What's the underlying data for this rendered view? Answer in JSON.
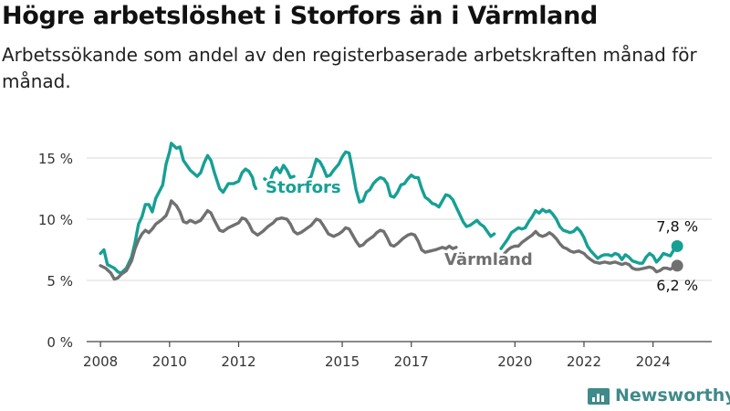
{
  "header": {
    "title": "Högre arbetslöshet i Storfors än i Värmland",
    "subtitle": "Arbetssökande som andel av den registerbaserade arbetskraften månad för månad."
  },
  "brand": {
    "name": "Newsworthy",
    "icon": "newsworthy-logo-icon"
  },
  "colors": {
    "storfors": "#16a094",
    "varmland": "#707070",
    "grid": "#d9d9d9",
    "axis": "#444444"
  },
  "chart_data": {
    "type": "line",
    "title": "Högre arbetslöshet i Storfors än i Värmland",
    "subtitle": "Arbetssökande som andel av den registerbaserade arbetskraften månad för månad.",
    "xlabel": "",
    "ylabel": "",
    "ylim": [
      0,
      15
    ],
    "xlim": [
      2007.6,
      2025.7
    ],
    "yticks": [
      {
        "value": 0,
        "label": "0 %"
      },
      {
        "value": 5,
        "label": "5 %"
      },
      {
        "value": 10,
        "label": "10 %"
      },
      {
        "value": 15,
        "label": "15 %"
      }
    ],
    "xticks": [
      "2008",
      "2010",
      "2012",
      "2015",
      "2017",
      "2020",
      "2022",
      "2024"
    ],
    "grid": true,
    "series": [
      {
        "name": "Storfors",
        "color": "#16a094",
        "points": [
          [
            2008.0,
            7.2
          ],
          [
            2008.1,
            7.5
          ],
          [
            2008.2,
            6.3
          ],
          [
            2008.4,
            6.0
          ],
          [
            2008.5,
            5.7
          ],
          [
            2008.6,
            5.6
          ],
          [
            2008.75,
            6.0
          ],
          [
            2008.9,
            6.9
          ],
          [
            2009.0,
            8.1
          ],
          [
            2009.1,
            9.6
          ],
          [
            2009.2,
            10.2
          ],
          [
            2009.3,
            11.2
          ],
          [
            2009.4,
            11.2
          ],
          [
            2009.5,
            10.6
          ],
          [
            2009.6,
            11.7
          ],
          [
            2009.8,
            12.8
          ],
          [
            2009.9,
            14.5
          ],
          [
            2010.0,
            15.5
          ],
          [
            2010.05,
            16.2
          ],
          [
            2010.2,
            15.8
          ],
          [
            2010.3,
            15.9
          ],
          [
            2010.4,
            14.8
          ],
          [
            2010.6,
            14.0
          ],
          [
            2010.8,
            13.5
          ],
          [
            2010.9,
            13.8
          ],
          [
            2011.0,
            14.6
          ],
          [
            2011.1,
            15.2
          ],
          [
            2011.2,
            14.8
          ],
          [
            2011.3,
            13.8
          ],
          [
            2011.45,
            12.5
          ],
          [
            2011.55,
            12.2
          ],
          [
            2011.7,
            12.9
          ],
          [
            2011.85,
            12.9
          ],
          [
            2012.0,
            13.1
          ],
          [
            2012.1,
            13.8
          ],
          [
            2012.2,
            14.1
          ],
          [
            2012.3,
            13.9
          ],
          [
            2012.4,
            13.4
          ],
          [
            2012.45,
            12.8
          ],
          [
            2012.5,
            12.5
          ],
          null,
          [
            2012.75,
            13.3
          ],
          [
            2012.9,
            13.0
          ],
          [
            2013.0,
            13.9
          ],
          [
            2013.1,
            14.2
          ],
          [
            2013.2,
            13.8
          ],
          [
            2013.3,
            14.4
          ],
          [
            2013.4,
            14.0
          ],
          [
            2013.5,
            13.4
          ],
          [
            2013.6,
            13.5
          ],
          null,
          [
            2014.0,
            13.2
          ],
          [
            2014.1,
            13.5
          ],
          [
            2014.25,
            14.9
          ],
          [
            2014.35,
            14.7
          ],
          [
            2014.45,
            14.2
          ],
          [
            2014.55,
            13.5
          ],
          [
            2014.65,
            13.6
          ],
          [
            2014.75,
            14.0
          ],
          [
            2014.9,
            14.5
          ],
          [
            2015.0,
            15.1
          ],
          [
            2015.1,
            15.5
          ],
          [
            2015.2,
            15.4
          ],
          [
            2015.3,
            14.0
          ],
          [
            2015.4,
            12.4
          ],
          [
            2015.5,
            11.4
          ],
          [
            2015.6,
            11.5
          ],
          [
            2015.7,
            12.2
          ],
          [
            2015.8,
            12.4
          ],
          [
            2015.9,
            12.9
          ],
          [
            2016.0,
            13.2
          ],
          [
            2016.1,
            13.4
          ],
          [
            2016.2,
            13.3
          ],
          [
            2016.3,
            12.9
          ],
          [
            2016.4,
            11.9
          ],
          [
            2016.5,
            11.8
          ],
          [
            2016.6,
            12.2
          ],
          [
            2016.7,
            12.8
          ],
          [
            2016.8,
            12.9
          ],
          [
            2016.9,
            13.3
          ],
          [
            2017.0,
            13.6
          ],
          [
            2017.1,
            13.4
          ],
          [
            2017.2,
            13.4
          ],
          [
            2017.3,
            12.5
          ],
          [
            2017.4,
            11.8
          ],
          [
            2017.5,
            11.6
          ],
          [
            2017.6,
            11.3
          ],
          [
            2017.7,
            11.2
          ],
          [
            2017.8,
            11.0
          ],
          [
            2017.9,
            11.5
          ],
          [
            2018.0,
            12.0
          ],
          [
            2018.1,
            11.9
          ],
          [
            2018.2,
            11.6
          ],
          [
            2018.3,
            11.0
          ],
          [
            2018.4,
            10.4
          ],
          [
            2018.5,
            9.8
          ],
          [
            2018.6,
            9.4
          ],
          [
            2018.7,
            9.5
          ],
          [
            2018.8,
            9.7
          ],
          [
            2018.9,
            9.9
          ],
          [
            2019.0,
            9.6
          ],
          [
            2019.1,
            9.4
          ],
          [
            2019.2,
            9.0
          ],
          [
            2019.3,
            8.6
          ],
          [
            2019.4,
            8.8
          ],
          null,
          [
            2019.6,
            7.6
          ],
          [
            2019.7,
            8.0
          ],
          [
            2019.8,
            8.4
          ],
          [
            2019.9,
            8.9
          ],
          [
            2020.0,
            9.1
          ],
          [
            2020.1,
            9.3
          ],
          [
            2020.2,
            9.2
          ],
          [
            2020.3,
            9.3
          ],
          [
            2020.4,
            9.8
          ],
          [
            2020.5,
            10.2
          ],
          [
            2020.6,
            10.7
          ],
          [
            2020.7,
            10.5
          ],
          [
            2020.8,
            10.8
          ],
          [
            2020.9,
            10.6
          ],
          [
            2021.0,
            10.7
          ],
          [
            2021.1,
            10.4
          ],
          [
            2021.2,
            10.0
          ],
          [
            2021.3,
            9.4
          ],
          [
            2021.4,
            9.1
          ],
          [
            2021.5,
            9.0
          ],
          [
            2021.6,
            8.9
          ],
          [
            2021.7,
            9.0
          ],
          [
            2021.8,
            9.3
          ],
          [
            2021.9,
            9.0
          ],
          [
            2022.0,
            8.5
          ],
          [
            2022.1,
            7.8
          ],
          [
            2022.2,
            7.4
          ],
          [
            2022.3,
            7.1
          ],
          [
            2022.4,
            6.8
          ],
          [
            2022.5,
            7.0
          ],
          [
            2022.6,
            7.1
          ],
          [
            2022.7,
            7.1
          ],
          [
            2022.8,
            7.0
          ],
          [
            2022.9,
            7.2
          ],
          [
            2023.0,
            7.1
          ],
          [
            2023.1,
            6.7
          ],
          [
            2023.2,
            7.1
          ],
          [
            2023.3,
            6.9
          ],
          [
            2023.4,
            6.6
          ],
          [
            2023.5,
            6.5
          ],
          [
            2023.6,
            6.4
          ],
          [
            2023.7,
            6.4
          ],
          [
            2023.8,
            6.9
          ],
          [
            2023.9,
            7.2
          ],
          [
            2024.0,
            7.0
          ],
          [
            2024.1,
            6.5
          ],
          [
            2024.2,
            6.8
          ],
          [
            2024.3,
            7.2
          ],
          [
            2024.4,
            7.1
          ],
          [
            2024.5,
            7.0
          ],
          [
            2024.6,
            7.5
          ],
          [
            2024.7,
            7.8
          ]
        ],
        "end_label": "7,8 %",
        "label": "Storfors"
      },
      {
        "name": "Värmland",
        "color": "#707070",
        "points": [
          [
            2008.0,
            6.2
          ],
          [
            2008.15,
            6.0
          ],
          [
            2008.3,
            5.6
          ],
          [
            2008.4,
            5.1
          ],
          [
            2008.5,
            5.2
          ],
          [
            2008.6,
            5.5
          ],
          [
            2008.75,
            5.8
          ],
          [
            2008.9,
            6.6
          ],
          [
            2009.0,
            7.6
          ],
          [
            2009.1,
            8.3
          ],
          [
            2009.2,
            8.8
          ],
          [
            2009.3,
            9.1
          ],
          [
            2009.4,
            8.9
          ],
          [
            2009.5,
            9.2
          ],
          [
            2009.6,
            9.6
          ],
          [
            2009.75,
            9.9
          ],
          [
            2009.9,
            10.3
          ],
          [
            2010.0,
            11.0
          ],
          [
            2010.05,
            11.5
          ],
          [
            2010.2,
            11.1
          ],
          [
            2010.3,
            10.6
          ],
          [
            2010.4,
            9.8
          ],
          [
            2010.5,
            9.7
          ],
          [
            2010.6,
            9.9
          ],
          [
            2010.75,
            9.7
          ],
          [
            2010.9,
            9.9
          ],
          [
            2011.0,
            10.3
          ],
          [
            2011.1,
            10.7
          ],
          [
            2011.2,
            10.5
          ],
          [
            2011.3,
            9.9
          ],
          [
            2011.45,
            9.1
          ],
          [
            2011.55,
            9.0
          ],
          [
            2011.7,
            9.3
          ],
          [
            2011.85,
            9.5
          ],
          [
            2012.0,
            9.7
          ],
          [
            2012.1,
            10.1
          ],
          [
            2012.2,
            10.0
          ],
          [
            2012.3,
            9.6
          ],
          [
            2012.4,
            9.0
          ],
          [
            2012.55,
            8.7
          ],
          [
            2012.7,
            9.0
          ],
          [
            2012.85,
            9.4
          ],
          [
            2013.0,
            9.7
          ],
          [
            2013.1,
            10.0
          ],
          [
            2013.25,
            10.1
          ],
          [
            2013.4,
            10.0
          ],
          [
            2013.5,
            9.6
          ],
          [
            2013.6,
            9.0
          ],
          [
            2013.7,
            8.8
          ],
          [
            2013.8,
            8.9
          ],
          [
            2013.9,
            9.1
          ],
          [
            2014.0,
            9.3
          ],
          [
            2014.1,
            9.5
          ],
          [
            2014.25,
            10.0
          ],
          [
            2014.35,
            9.9
          ],
          [
            2014.45,
            9.5
          ],
          [
            2014.6,
            8.8
          ],
          [
            2014.75,
            8.6
          ],
          [
            2014.9,
            8.8
          ],
          [
            2015.0,
            9.0
          ],
          [
            2015.1,
            9.3
          ],
          [
            2015.2,
            9.2
          ],
          [
            2015.3,
            8.7
          ],
          [
            2015.4,
            8.2
          ],
          [
            2015.5,
            7.8
          ],
          [
            2015.6,
            7.9
          ],
          [
            2015.7,
            8.2
          ],
          [
            2015.8,
            8.4
          ],
          [
            2015.9,
            8.6
          ],
          [
            2016.0,
            8.9
          ],
          [
            2016.1,
            9.1
          ],
          [
            2016.2,
            9.0
          ],
          [
            2016.3,
            8.5
          ],
          [
            2016.4,
            7.9
          ],
          [
            2016.5,
            7.8
          ],
          [
            2016.6,
            8.0
          ],
          [
            2016.75,
            8.4
          ],
          [
            2016.9,
            8.7
          ],
          [
            2017.0,
            8.8
          ],
          [
            2017.1,
            8.7
          ],
          [
            2017.2,
            8.2
          ],
          [
            2017.3,
            7.5
          ],
          [
            2017.4,
            7.3
          ],
          [
            2017.55,
            7.4
          ],
          [
            2017.7,
            7.5
          ],
          [
            2017.8,
            7.6
          ],
          [
            2017.9,
            7.7
          ],
          [
            2018.0,
            7.6
          ],
          [
            2018.1,
            7.8
          ],
          [
            2018.2,
            7.6
          ],
          [
            2018.3,
            7.7
          ],
          null,
          [
            2019.7,
            7.2
          ],
          [
            2019.8,
            7.5
          ],
          [
            2019.9,
            7.7
          ],
          [
            2020.0,
            7.8
          ],
          [
            2020.1,
            7.8
          ],
          [
            2020.2,
            8.1
          ],
          [
            2020.35,
            8.4
          ],
          [
            2020.5,
            8.7
          ],
          [
            2020.6,
            9.0
          ],
          [
            2020.7,
            8.7
          ],
          [
            2020.8,
            8.6
          ],
          [
            2020.9,
            8.7
          ],
          [
            2021.0,
            8.9
          ],
          [
            2021.1,
            8.7
          ],
          [
            2021.2,
            8.4
          ],
          [
            2021.3,
            8.0
          ],
          [
            2021.4,
            7.7
          ],
          [
            2021.5,
            7.6
          ],
          [
            2021.6,
            7.4
          ],
          [
            2021.7,
            7.3
          ],
          [
            2021.85,
            7.4
          ],
          [
            2022.0,
            7.2
          ],
          [
            2022.1,
            6.9
          ],
          [
            2022.2,
            6.7
          ],
          [
            2022.3,
            6.5
          ],
          [
            2022.45,
            6.4
          ],
          [
            2022.6,
            6.5
          ],
          [
            2022.75,
            6.4
          ],
          [
            2022.9,
            6.5
          ],
          [
            2023.0,
            6.4
          ],
          [
            2023.1,
            6.3
          ],
          [
            2023.2,
            6.4
          ],
          [
            2023.3,
            6.3
          ],
          [
            2023.4,
            6.0
          ],
          [
            2023.5,
            5.9
          ],
          [
            2023.6,
            5.9
          ],
          [
            2023.75,
            6.0
          ],
          [
            2023.9,
            6.1
          ],
          [
            2024.0,
            6.0
          ],
          [
            2024.1,
            5.7
          ],
          [
            2024.2,
            5.8
          ],
          [
            2024.3,
            6.0
          ],
          [
            2024.4,
            6.0
          ],
          [
            2024.5,
            5.9
          ],
          [
            2024.6,
            6.1
          ],
          [
            2024.7,
            6.2
          ]
        ],
        "end_label": "6,2 %",
        "label": "Värmland"
      }
    ]
  }
}
